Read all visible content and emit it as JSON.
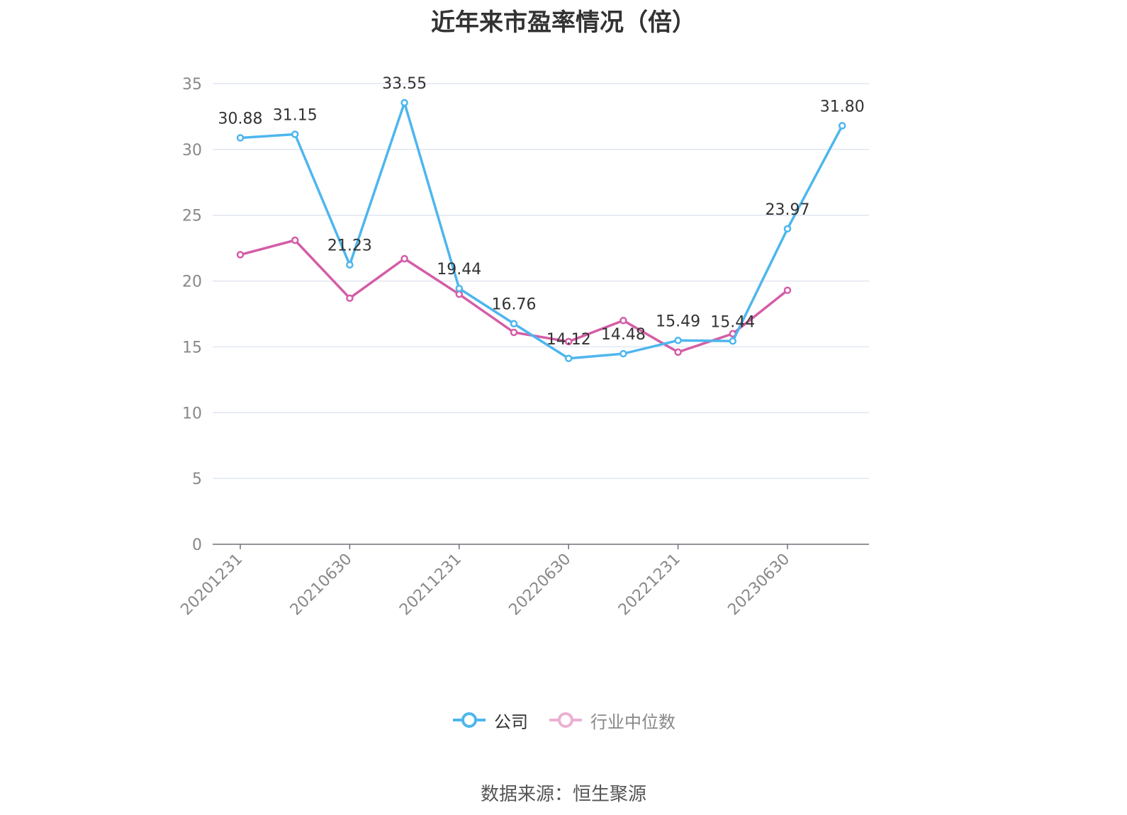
{
  "chart_data": {
    "type": "line",
    "title": "近年来市盈率情况（倍）",
    "x": [
      "20201231",
      "20210331",
      "20210630",
      "20210930",
      "20211231",
      "20220331",
      "20220630",
      "20220930",
      "20221231",
      "20230331",
      "20230630",
      "20230930"
    ],
    "x_tick_labels": [
      "20201231",
      "20210630",
      "20211231",
      "20220630",
      "20221231",
      "20230630"
    ],
    "ylim": [
      0,
      35
    ],
    "y_ticks": [
      0,
      5,
      10,
      15,
      20,
      25,
      30,
      35
    ],
    "grid": true,
    "legend_position": "bottom-center",
    "series": [
      {
        "name": "公司",
        "color": "#4DB6EE",
        "values": [
          30.88,
          31.15,
          21.23,
          33.55,
          19.44,
          16.76,
          14.12,
          14.48,
          15.49,
          15.44,
          23.97,
          31.8
        ],
        "labels": [
          "30.88",
          "31.15",
          "21.23",
          "33.55",
          "19.44",
          "16.76",
          "14.12",
          "14.48",
          "15.49",
          "15.44",
          "23.97",
          "31.80"
        ]
      },
      {
        "name": "行业中位数",
        "color": "#D45DA6",
        "values": [
          22.0,
          23.1,
          18.7,
          21.7,
          19.0,
          16.1,
          15.4,
          17.0,
          14.6,
          16.0,
          19.3,
          null
        ]
      }
    ]
  },
  "source": "数据来源：恒生聚源"
}
